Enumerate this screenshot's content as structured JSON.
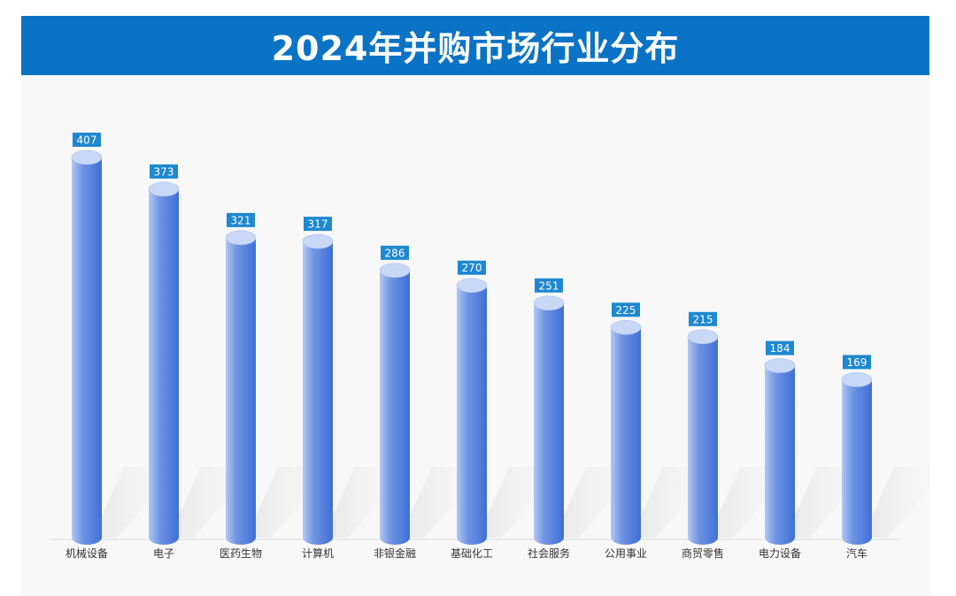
{
  "chart_data": {
    "type": "bar",
    "title": "2024年并购市场行业分布",
    "xlabel": "",
    "ylabel": "",
    "categories": [
      "机械设备",
      "电子",
      "医药生物",
      "计算机",
      "非银金融",
      "基础化工",
      "社会服务",
      "公用事业",
      "商贸零售",
      "电力设备",
      "汽车"
    ],
    "values": [
      407,
      373,
      321,
      317,
      286,
      270,
      251,
      225,
      215,
      184,
      169
    ],
    "data_labels": [
      "407",
      "373",
      "321",
      "317",
      "286",
      "270",
      "251",
      "225",
      "215",
      "184",
      "169"
    ],
    "ylim": [
      0,
      430
    ],
    "grid": false,
    "legend": "none",
    "bar_style": "3d-cylinder",
    "colors": {
      "title_bg": "#0a73c6",
      "title_text": "#ffffff",
      "bar_dark": "#3f6fd6",
      "bar_light": "#b4c8f2",
      "bar_top": "#c9d8f7",
      "label_bg": "#1e88d0",
      "label_text": "#ffffff",
      "axis_text": "#333333",
      "panel_bg": "#f8f8f8"
    }
  }
}
